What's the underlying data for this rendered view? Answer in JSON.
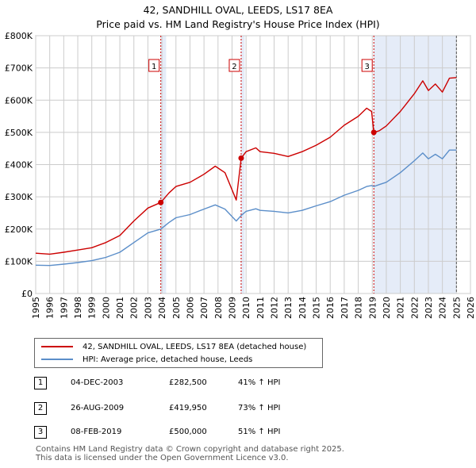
{
  "title_line1": "42, SANDHILL OVAL, LEEDS, LS17 8EA",
  "title_line2": "Price paid vs. HM Land Registry's House Price Index (HPI)",
  "chart_data": {
    "type": "line",
    "title": "42, SANDHILL OVAL, LEEDS, LS17 8EA - Price paid vs. HM Land Registry's House Price Index (HPI)",
    "xlim": [
      1995,
      2026
    ],
    "ylim": [
      0,
      800000
    ],
    "yticks": [
      0,
      100000,
      200000,
      300000,
      400000,
      500000,
      600000,
      700000,
      800000
    ],
    "ytick_labels": [
      "£0",
      "£100K",
      "£200K",
      "£300K",
      "£400K",
      "£500K",
      "£600K",
      "£700K",
      "£800K"
    ],
    "xticks": [
      1995,
      1996,
      1997,
      1998,
      1999,
      2000,
      2001,
      2002,
      2003,
      2004,
      2005,
      2006,
      2007,
      2008,
      2009,
      2010,
      2011,
      2012,
      2013,
      2014,
      2015,
      2016,
      2017,
      2018,
      2019,
      2020,
      2021,
      2022,
      2023,
      2024,
      2025,
      2026
    ],
    "grid": true,
    "shaded_regions": [
      [
        2003.92,
        2004.3
      ],
      [
        2009.65,
        2009.9
      ],
      [
        2019.1,
        2025.0
      ]
    ],
    "series": [
      {
        "name": "42, SANDHILL OVAL, LEEDS, LS17 8EA (detached house)",
        "color": "#cc0000",
        "x": [
          1995.0,
          1996.0,
          1997.0,
          1998.0,
          1999.0,
          2000.0,
          2001.0,
          2002.0,
          2003.0,
          2003.92,
          2004.5,
          2005.0,
          2006.0,
          2007.0,
          2007.8,
          2008.5,
          2009.3,
          2009.65,
          2010.0,
          2010.7,
          2011.0,
          2012.0,
          2013.0,
          2014.0,
          2015.0,
          2016.0,
          2017.0,
          2018.0,
          2018.6,
          2018.95,
          2019.11,
          2019.5,
          2020.0,
          2021.0,
          2022.0,
          2022.6,
          2023.0,
          2023.5,
          2024.0,
          2024.5,
          2025.0
        ],
        "y": [
          125000,
          122000,
          128000,
          135000,
          142000,
          158000,
          180000,
          225000,
          265000,
          282500,
          312000,
          332000,
          345000,
          370000,
          395000,
          375000,
          290000,
          419950,
          440000,
          452000,
          440000,
          435000,
          425000,
          440000,
          460000,
          485000,
          522000,
          550000,
          575000,
          565000,
          500000,
          505000,
          520000,
          565000,
          620000,
          660000,
          630000,
          650000,
          625000,
          668000,
          670000
        ]
      },
      {
        "name": "HPI: Average price, detached house, Leeds",
        "color": "#5b8ec9",
        "x": [
          1995.0,
          1996.0,
          1997.0,
          1998.0,
          1999.0,
          2000.0,
          2001.0,
          2002.0,
          2003.0,
          2003.92,
          2004.5,
          2005.0,
          2006.0,
          2007.0,
          2007.8,
          2008.5,
          2009.3,
          2009.65,
          2010.0,
          2010.7,
          2011.0,
          2012.0,
          2013.0,
          2014.0,
          2015.0,
          2016.0,
          2017.0,
          2018.0,
          2018.6,
          2018.95,
          2019.11,
          2019.5,
          2020.0,
          2021.0,
          2022.0,
          2022.6,
          2023.0,
          2023.5,
          2024.0,
          2024.5,
          2025.0
        ],
        "y": [
          88000,
          87000,
          91000,
          96000,
          102000,
          112000,
          128000,
          158000,
          188000,
          200000,
          220000,
          235000,
          245000,
          262000,
          275000,
          262000,
          225000,
          242000,
          255000,
          263000,
          258000,
          255000,
          250000,
          258000,
          272000,
          285000,
          305000,
          320000,
          332000,
          335000,
          332000,
          338000,
          345000,
          375000,
          412000,
          436000,
          418000,
          432000,
          418000,
          445000,
          445000
        ]
      }
    ],
    "markers": [
      {
        "label": "1",
        "x": 2003.92,
        "y": 282500
      },
      {
        "label": "2",
        "x": 2009.65,
        "y": 419950
      },
      {
        "label": "3",
        "x": 2019.11,
        "y": 500000
      }
    ],
    "dashed_line_x": 2025.0
  },
  "legend": {
    "property": "42, SANDHILL OVAL, LEEDS, LS17 8EA (detached house)",
    "hpi": "HPI: Average price, detached house, Leeds"
  },
  "transactions": [
    {
      "num": "1",
      "date": "04-DEC-2003",
      "price": "£282,500",
      "hpi": "41% ↑ HPI"
    },
    {
      "num": "2",
      "date": "26-AUG-2009",
      "price": "£419,950",
      "hpi": "73% ↑ HPI"
    },
    {
      "num": "3",
      "date": "08-FEB-2019",
      "price": "£500,000",
      "hpi": "51% ↑ HPI"
    }
  ],
  "footer": {
    "line1": "Contains HM Land Registry data © Crown copyright and database right 2025.",
    "line2": "This data is licensed under the Open Government Licence v3.0."
  }
}
